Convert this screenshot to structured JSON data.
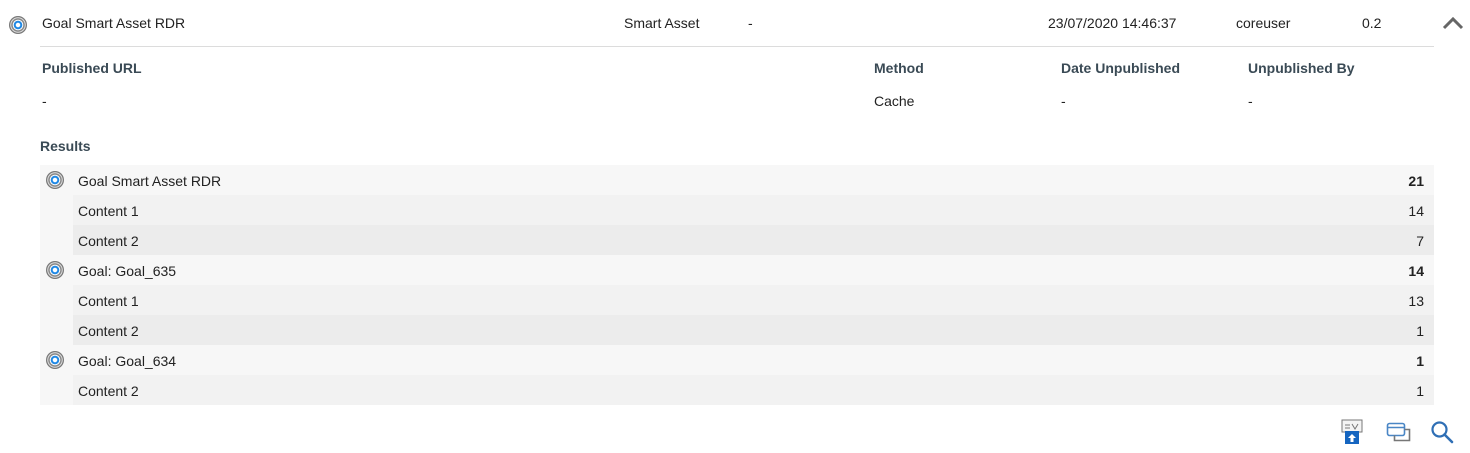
{
  "header": {
    "name": "Goal Smart Asset RDR",
    "type": "Smart Asset",
    "status": "-",
    "date": "23/07/2020 14:46:37",
    "user": "coreuser",
    "version": "0.2"
  },
  "details": {
    "published_url_label": "Published URL",
    "published_url": "-",
    "method_label": "Method",
    "method": "Cache",
    "date_unpublished_label": "Date Unpublished",
    "date_unpublished": "-",
    "unpublished_by_label": "Unpublished By",
    "unpublished_by": "-"
  },
  "results": {
    "label": "Results",
    "rows": [
      {
        "kind": "goal",
        "name": "Goal Smart Asset RDR",
        "value": "21"
      },
      {
        "kind": "content",
        "name": "Content 1",
        "value": "14"
      },
      {
        "kind": "content",
        "name": "Content 2",
        "value": "7"
      },
      {
        "kind": "goal",
        "name": "Goal: Goal_635",
        "value": "14"
      },
      {
        "kind": "content",
        "name": "Content 1",
        "value": "13"
      },
      {
        "kind": "content",
        "name": "Content 2",
        "value": "1"
      },
      {
        "kind": "goal",
        "name": "Goal: Goal_634",
        "value": "1"
      },
      {
        "kind": "content",
        "name": "Content 2",
        "value": "1"
      }
    ]
  },
  "colors": {
    "accent": "#1e88e5",
    "label": "#3a4a55"
  },
  "icons": [
    "goal-icon",
    "chevron-up-icon",
    "publish-icon",
    "windows-icon",
    "search-icon"
  ]
}
